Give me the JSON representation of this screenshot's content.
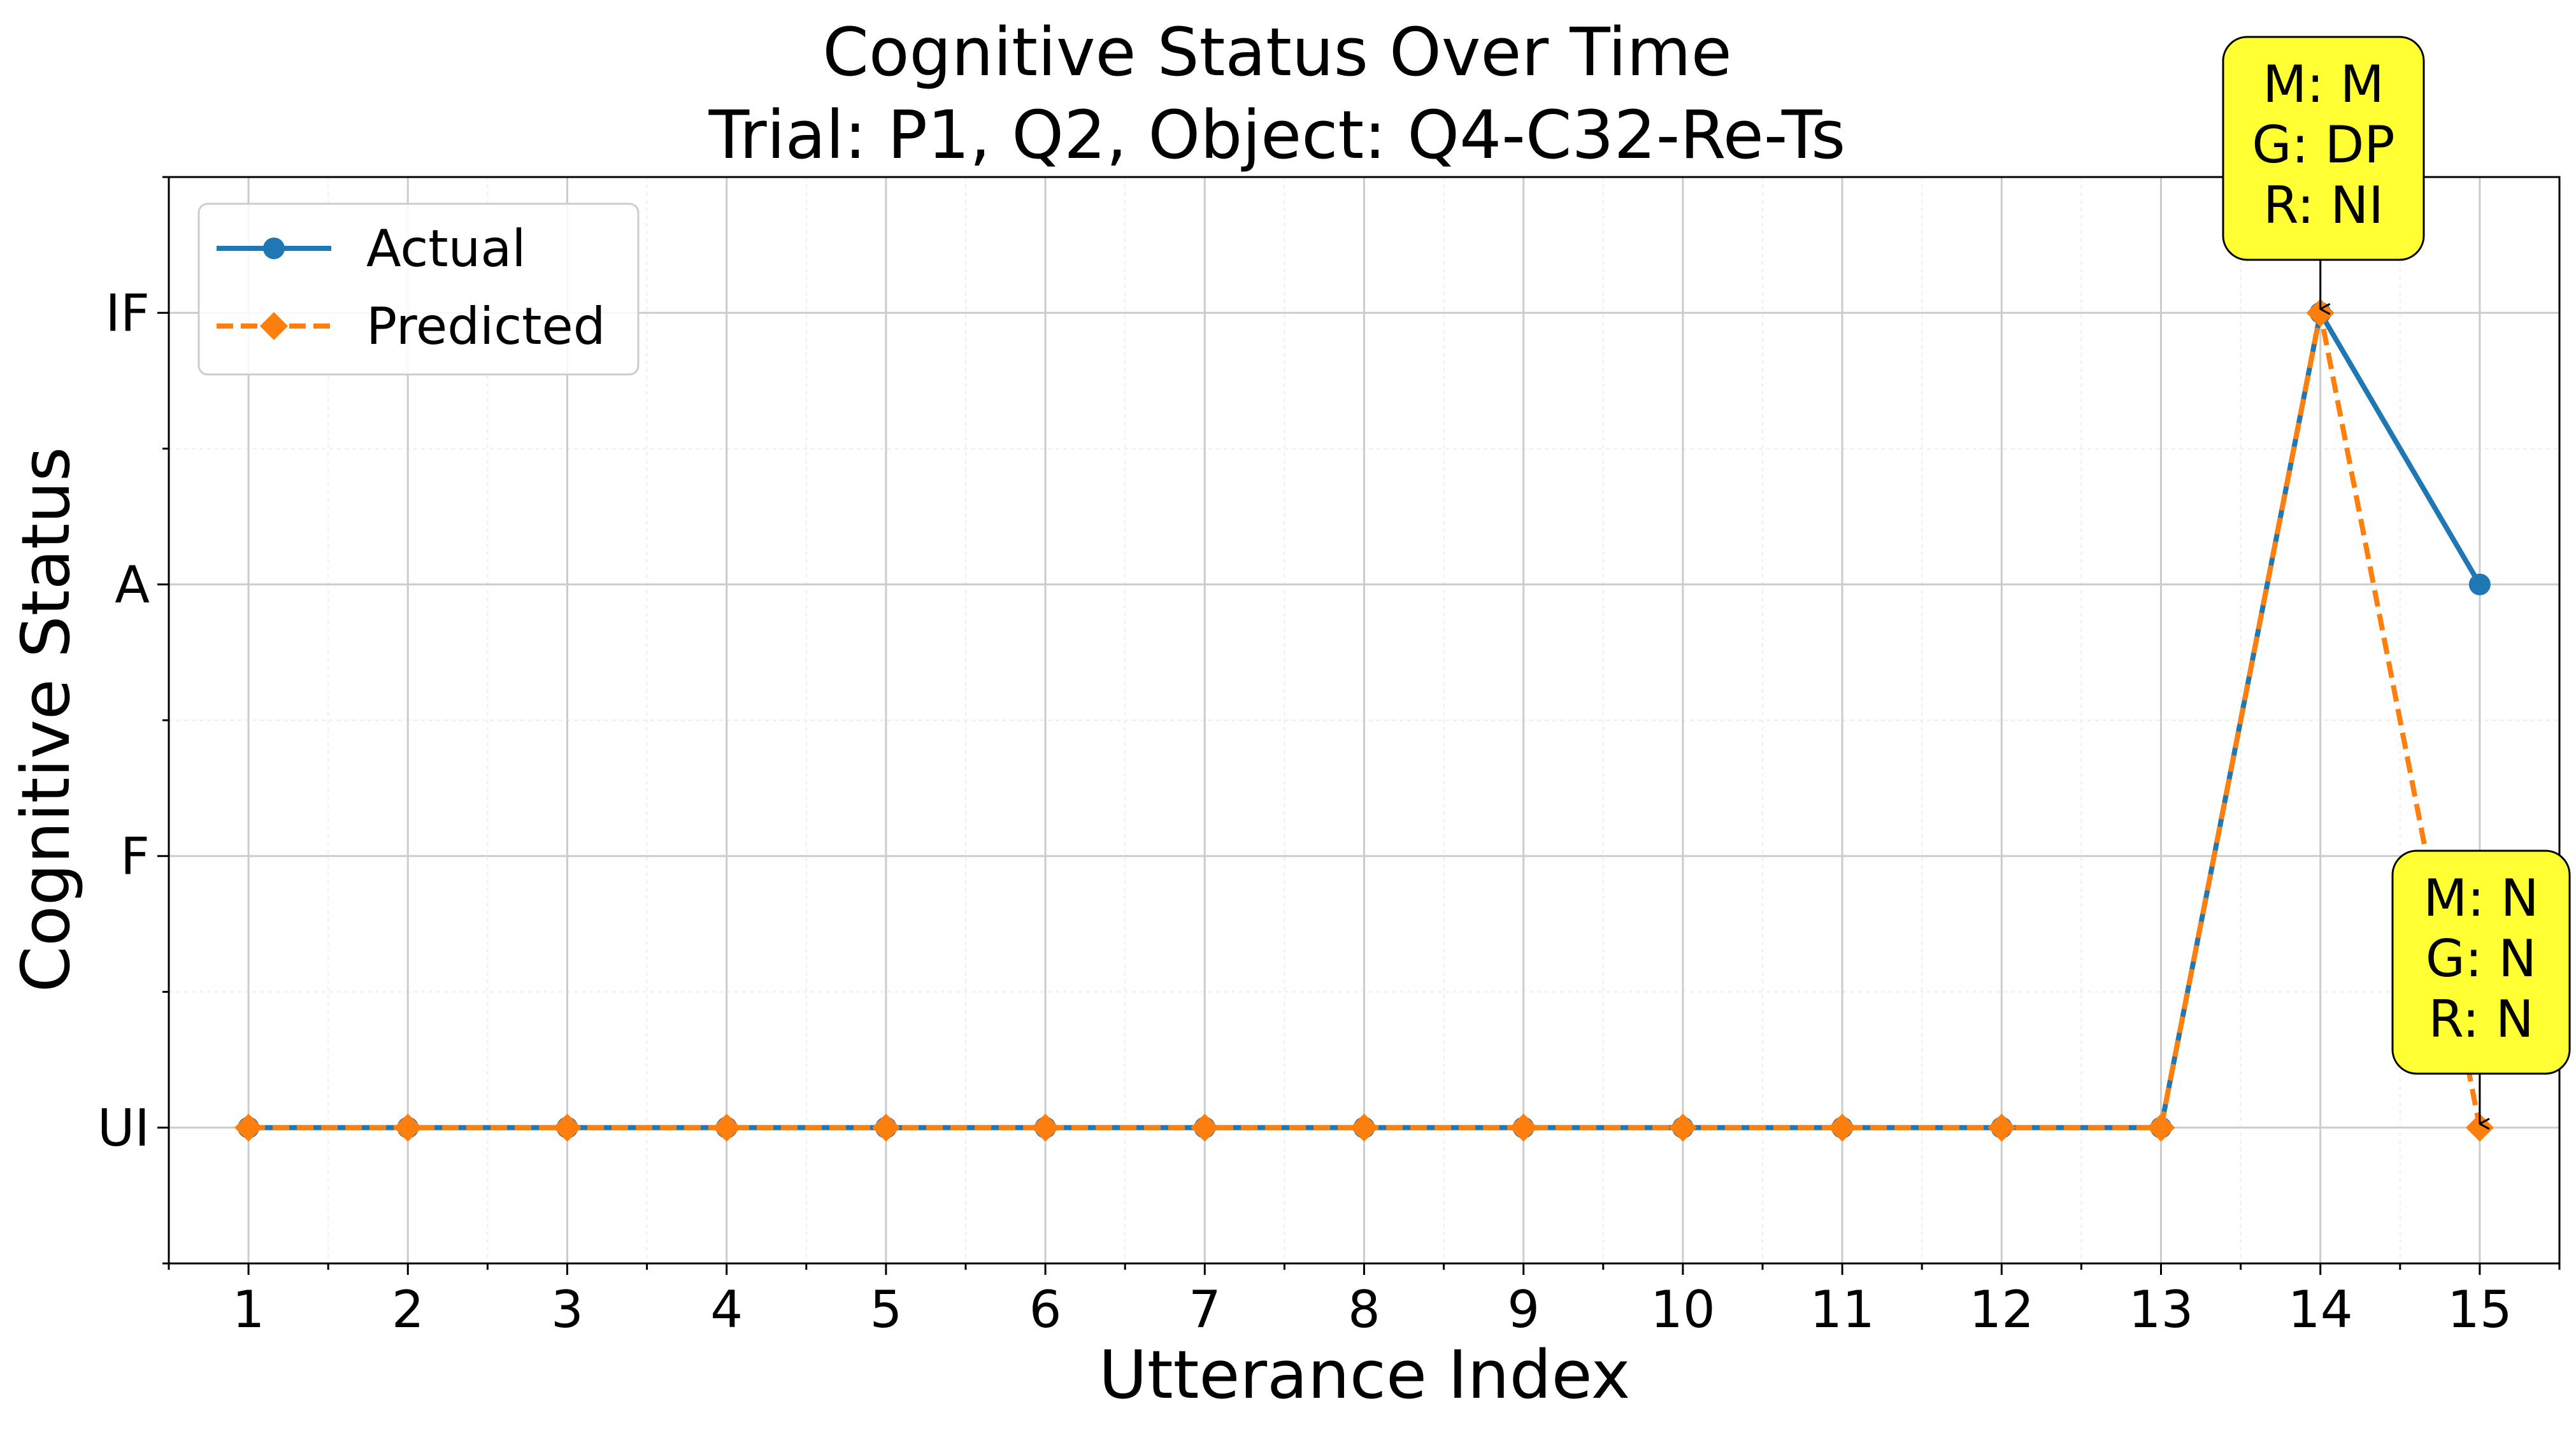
{
  "chart_data": {
    "type": "line",
    "title": "Cognitive Status Over Time",
    "subtitle": "Trial: P1, Q2, Object: Q4-C32-Re-Ts",
    "xlabel": "Utterance Index",
    "ylabel": "Cognitive Status",
    "x": [
      1,
      2,
      3,
      4,
      5,
      6,
      7,
      8,
      9,
      10,
      11,
      12,
      13,
      14,
      15
    ],
    "y_categories": [
      "UI",
      "F",
      "A",
      "IF"
    ],
    "xlim": [
      0.5,
      15.5
    ],
    "ylim": [
      -0.5,
      3.5
    ],
    "grid": true,
    "legend_position": "top-left",
    "series": [
      {
        "name": "Actual",
        "color": "#1f77b4",
        "marker": "circle",
        "line_style": "solid",
        "values": [
          "UI",
          "UI",
          "UI",
          "UI",
          "UI",
          "UI",
          "UI",
          "UI",
          "UI",
          "UI",
          "UI",
          "UI",
          "UI",
          "IF",
          "A"
        ]
      },
      {
        "name": "Predicted",
        "color": "#ff7f0e",
        "marker": "diamond",
        "line_style": "dashed",
        "values": [
          "UI",
          "UI",
          "UI",
          "UI",
          "UI",
          "UI",
          "UI",
          "UI",
          "UI",
          "UI",
          "UI",
          "UI",
          "UI",
          "IF",
          "UI"
        ]
      }
    ],
    "annotations": [
      {
        "x": 14,
        "y": "IF",
        "lines": [
          "M: M",
          "G: DP",
          "R: NI"
        ],
        "color": "#ffff33"
      },
      {
        "x": 15,
        "y": "UI",
        "lines": [
          "M: N",
          "G: N",
          "R: N"
        ],
        "color": "#ffff33"
      }
    ]
  }
}
